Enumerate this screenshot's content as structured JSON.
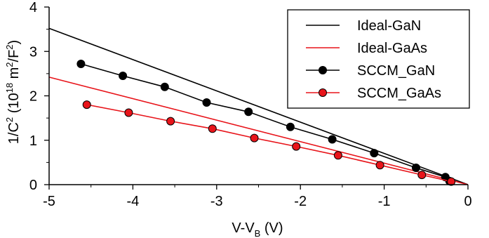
{
  "chart_data": {
    "type": "line",
    "xlabel": {
      "main": "V-V",
      "sub": "B",
      "unit": " (V)"
    },
    "ylabel": {
      "pre": "1/C",
      "sup1": "2",
      "mid": " (10",
      "sup2": "18",
      "mid2": " m",
      "sup3": "2",
      "mid3": "/F",
      "sup4": "2",
      "post": ")"
    },
    "xlim": [
      -5,
      0
    ],
    "ylim": [
      0,
      4
    ],
    "x_ticks": [
      -5,
      -4,
      -3,
      -2,
      -1,
      0
    ],
    "y_ticks": [
      0,
      1,
      2,
      3,
      4
    ],
    "grid": false,
    "legend_position": "top-right",
    "series": [
      {
        "name": "Ideal-GaN",
        "kind": "line",
        "color": "#000000",
        "points": [
          [
            -5.0,
            3.52
          ],
          [
            0.0,
            0.0
          ]
        ]
      },
      {
        "name": "Ideal-GaAs",
        "kind": "line",
        "color": "#e8141a",
        "points": [
          [
            -5.0,
            2.42
          ],
          [
            0.0,
            0.0
          ]
        ]
      },
      {
        "name": "SCCM_GaN",
        "kind": "line-marker",
        "color": "#000000",
        "marker_fill": "#000000",
        "points": [
          [
            -4.62,
            2.72
          ],
          [
            -4.12,
            2.45
          ],
          [
            -3.62,
            2.2
          ],
          [
            -3.12,
            1.85
          ],
          [
            -2.62,
            1.64
          ],
          [
            -2.12,
            1.3
          ],
          [
            -1.62,
            1.02
          ],
          [
            -1.12,
            0.71
          ],
          [
            -0.62,
            0.38
          ],
          [
            -0.27,
            0.17
          ],
          [
            -0.22,
            0.08
          ]
        ]
      },
      {
        "name": "SCCM_GaAs",
        "kind": "line-marker",
        "color": "#e8141a",
        "marker_fill": "#e8141a",
        "points": [
          [
            -4.55,
            1.8
          ],
          [
            -4.05,
            1.62
          ],
          [
            -3.55,
            1.43
          ],
          [
            -3.05,
            1.26
          ],
          [
            -2.55,
            1.05
          ],
          [
            -2.05,
            0.86
          ],
          [
            -1.55,
            0.66
          ],
          [
            -1.05,
            0.44
          ],
          [
            -0.55,
            0.22
          ],
          [
            -0.2,
            0.07
          ]
        ]
      }
    ]
  }
}
